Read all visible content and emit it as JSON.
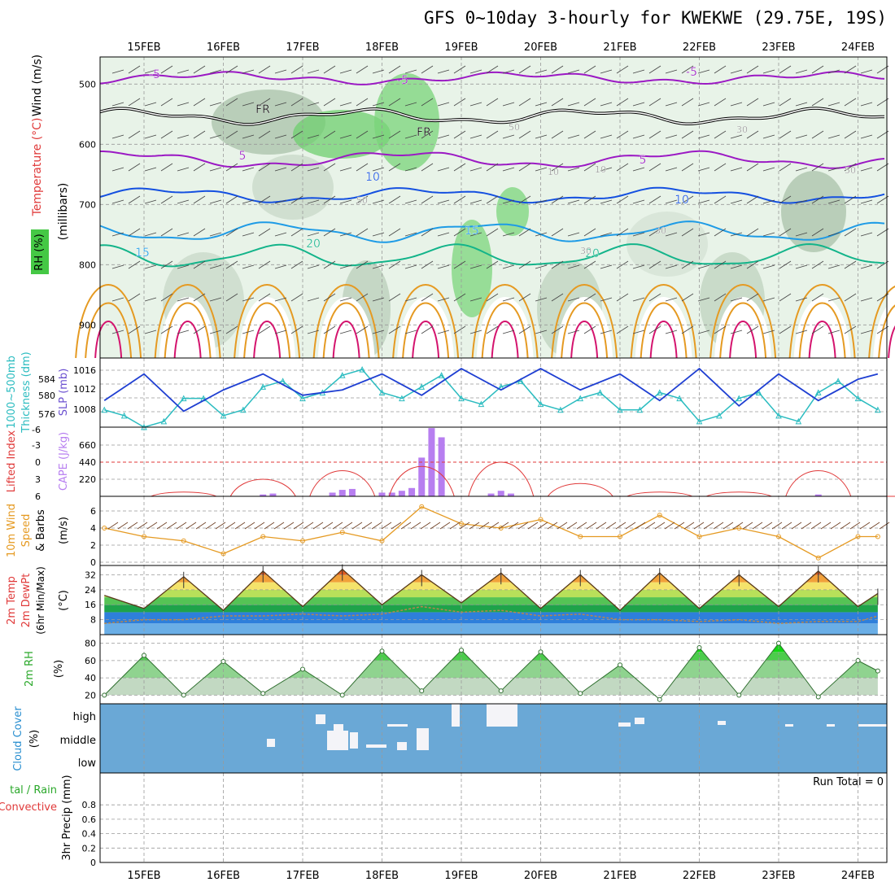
{
  "title": "GFS 0~10day 3-hourly for KWEKWE (29.75E, 19S)",
  "dates": [
    "15FEB",
    "16FEB",
    "17FEB",
    "18FEB",
    "19FEB",
    "20FEB",
    "21FEB",
    "22FEB",
    "23FEB",
    "24FEB"
  ],
  "colors": {
    "temp_cold": "#9b19c4",
    "temp_cool": "#1450e0",
    "temp_mild": "#1e9be6",
    "temp_warm": "#13b48a",
    "temp_hot": "#e59a22",
    "temp_vhot": "#d4146e",
    "freezing": "#000000",
    "thickness": "#2bbcc0",
    "slp": "#1f3fd2",
    "lifted": "#e03a3a",
    "cape": "#b77ef0",
    "wind10": "#e59a22",
    "rh_high": "#45c845",
    "cloud_bg": "#6aa8d6",
    "cloud_block": "#f4f4f8"
  },
  "panels": {
    "upper": {
      "ylabel_wind": "Wind (m/s)",
      "ylabel_temp": "Temperature (°C)",
      "ylabel_rh": "RH (%)",
      "ylabel_p": "(millibars)",
      "yticks": [
        "500",
        "600",
        "700",
        "800",
        "900"
      ],
      "contour_labels": [
        "-5",
        "-5",
        "-5",
        "5",
        "5",
        "10",
        "10",
        "15",
        "15",
        "20",
        "20",
        "FR",
        "FR",
        "50",
        "50",
        "50",
        "30",
        "30",
        "30",
        "10",
        "10"
      ]
    },
    "thick": {
      "ylabel_a": "1000~500mb",
      "ylabel_b": "Thickness (dm)",
      "ylabel_c": "SLP (mb)",
      "yticks_left": [
        "584",
        "580",
        "576"
      ],
      "yticks_right": [
        "1016",
        "1012",
        "1008"
      ]
    },
    "cape": {
      "ylabel_a": "Lifted Index",
      "ylabel_b": "CAPE (J/kg)",
      "yticks_left": [
        "-6",
        "-3",
        "0",
        "3",
        "6"
      ],
      "yticks_right": [
        "660",
        "440",
        "220"
      ]
    },
    "wind10": {
      "ylabel_a": "10m Wind",
      "ylabel_b": "Speed",
      "ylabel_c": "& Barbs",
      "ylabel_d": "(m/s)",
      "yticks": [
        "6",
        "4",
        "2",
        "0"
      ]
    },
    "temp2m": {
      "ylabel_a": "2m Temp",
      "ylabel_b": "2m DewPt",
      "ylabel_c": "(6hr Min/Max)",
      "ylabel_d": "(°C)",
      "yticks": [
        "32",
        "24",
        "16",
        "8"
      ]
    },
    "rh2m": {
      "ylabel_a": "2m RH",
      "ylabel_b": "(%)",
      "yticks": [
        "80",
        "60",
        "40",
        "20"
      ]
    },
    "cloud": {
      "ylabel_a": "Cloud Cover",
      "ylabel_b": "(%)",
      "levels": [
        "high",
        "middle",
        "low"
      ]
    },
    "precip": {
      "ylabel_a": "tal / Rain",
      "ylabel_b": "Convective",
      "ylabel_c": "3hr Precip (mm)",
      "yticks": [
        "0.8",
        "0.6",
        "0.4",
        "0.2",
        "0"
      ],
      "run_total": "Run Total = 0"
    }
  },
  "chart_data": [
    {
      "type": "line",
      "name": "1000~500mb Thickness (dm)",
      "x": [
        "14FEB12",
        "14FEB18",
        "15FEB00",
        "15FEB06",
        "15FEB12",
        "15FEB18",
        "16FEB00",
        "16FEB06",
        "16FEB12",
        "16FEB18",
        "17FEB00",
        "17FEB06",
        "17FEB12",
        "17FEB18",
        "18FEB00",
        "18FEB06",
        "18FEB12",
        "18FEB18",
        "19FEB00",
        "19FEB06",
        "19FEB12",
        "19FEB18",
        "20FEB00",
        "20FEB06",
        "20FEB12",
        "20FEB18",
        "21FEB00",
        "21FEB06",
        "21FEB12",
        "21FEB18",
        "22FEB00",
        "22FEB06",
        "22FEB12",
        "22FEB18",
        "23FEB00",
        "23FEB06",
        "23FEB12",
        "23FEB18",
        "24FEB00",
        "24FEB06"
      ],
      "values": [
        578,
        577,
        575,
        576,
        580,
        580,
        577,
        578,
        582,
        583,
        580,
        581,
        584,
        585,
        581,
        580,
        582,
        584,
        580,
        579,
        582,
        583,
        579,
        578,
        580,
        581,
        578,
        578,
        581,
        580,
        576,
        577,
        580,
        581,
        577,
        576,
        581,
        583,
        580,
        578
      ],
      "ylim": [
        575,
        587
      ]
    },
    {
      "type": "line",
      "name": "SLP (mb)",
      "x": [
        "14FEB12",
        "15FEB00",
        "15FEB12",
        "16FEB00",
        "16FEB12",
        "17FEB00",
        "17FEB12",
        "18FEB00",
        "18FEB12",
        "19FEB00",
        "19FEB12",
        "20FEB00",
        "20FEB12",
        "21FEB00",
        "21FEB12",
        "22FEB00",
        "22FEB12",
        "23FEB00",
        "23FEB12",
        "24FEB00",
        "24FEB06"
      ],
      "values": [
        1010,
        1015,
        1008,
        1012,
        1015,
        1011,
        1012,
        1015,
        1011,
        1016,
        1012,
        1016,
        1012,
        1015,
        1010,
        1016,
        1009,
        1015,
        1010,
        1014,
        1015
      ],
      "ylim": [
        1005,
        1018
      ]
    },
    {
      "type": "bar",
      "name": "CAPE (J/kg)",
      "x": [
        "16FEB12",
        "16FEB15",
        "17FEB09",
        "17FEB12",
        "17FEB15",
        "18FEB00",
        "18FEB03",
        "18FEB06",
        "18FEB09",
        "18FEB12",
        "18FEB15",
        "18FEB18",
        "19FEB09",
        "19FEB12",
        "19FEB15",
        "23FEB12"
      ],
      "values": [
        20,
        30,
        40,
        70,
        80,
        40,
        40,
        60,
        90,
        420,
        740,
        640,
        30,
        60,
        30,
        20
      ],
      "ylim": [
        0,
        750
      ]
    },
    {
      "type": "line",
      "name": "Lifted Index",
      "x": [
        "15FEB12",
        "16FEB12",
        "17FEB12",
        "18FEB12",
        "19FEB12",
        "20FEB12",
        "21FEB12",
        "22FEB12",
        "23FEB12",
        "24FEB12"
      ],
      "values": [
        5,
        2,
        0,
        -1,
        -2,
        3,
        5,
        5,
        0,
        6
      ],
      "ylim": [
        6,
        -6
      ]
    },
    {
      "type": "line",
      "name": "10m Wind Speed (m/s)",
      "x": [
        "14FEB12",
        "15FEB00",
        "15FEB12",
        "16FEB00",
        "16FEB12",
        "17FEB00",
        "17FEB12",
        "18FEB00",
        "18FEB12",
        "19FEB00",
        "19FEB12",
        "20FEB00",
        "20FEB12",
        "21FEB00",
        "21FEB12",
        "22FEB00",
        "22FEB12",
        "23FEB00",
        "23FEB12",
        "24FEB00",
        "24FEB06"
      ],
      "values": [
        4,
        3,
        2.5,
        1,
        3,
        2.5,
        3.5,
        2.5,
        6.5,
        4.5,
        4,
        5,
        3,
        3,
        5.5,
        3,
        4,
        3,
        0.5,
        3,
        3
      ],
      "ylim": [
        0,
        7
      ]
    },
    {
      "type": "area",
      "name": "2m Temp (°C)",
      "x": [
        "14FEB12",
        "15FEB00",
        "15FEB12",
        "16FEB00",
        "16FEB12",
        "17FEB00",
        "17FEB12",
        "18FEB00",
        "18FEB12",
        "19FEB00",
        "19FEB12",
        "20FEB00",
        "20FEB12",
        "21FEB00",
        "21FEB12",
        "22FEB00",
        "22FEB12",
        "23FEB00",
        "23FEB12",
        "24FEB00",
        "24FEB06"
      ],
      "values": [
        21,
        14,
        31,
        13,
        34,
        15,
        35,
        16,
        32,
        17,
        33,
        14,
        32,
        13,
        33,
        14,
        32,
        15,
        34,
        15,
        22
      ],
      "ylim": [
        0,
        37
      ]
    },
    {
      "type": "line",
      "name": "2m DewPt (°C)",
      "x": [
        "14FEB12",
        "15FEB00",
        "15FEB12",
        "16FEB00",
        "16FEB12",
        "17FEB00",
        "17FEB12",
        "18FEB00",
        "18FEB12",
        "19FEB00",
        "19FEB12",
        "20FEB00",
        "20FEB12",
        "21FEB00",
        "21FEB12",
        "22FEB00",
        "22FEB12",
        "23FEB00",
        "23FEB12",
        "24FEB00",
        "24FEB06"
      ],
      "values": [
        6,
        8,
        8,
        10,
        10,
        11,
        10,
        11,
        15,
        12,
        13,
        10,
        11,
        8,
        8,
        7,
        8,
        6,
        7,
        7,
        10
      ],
      "ylim": [
        0,
        37
      ]
    },
    {
      "type": "area",
      "name": "2m RH (%)",
      "x": [
        "14FEB12",
        "15FEB00",
        "15FEB12",
        "16FEB00",
        "16FEB12",
        "17FEB00",
        "17FEB12",
        "18FEB00",
        "18FEB12",
        "19FEB00",
        "19FEB12",
        "20FEB00",
        "20FEB12",
        "21FEB00",
        "21FEB12",
        "22FEB00",
        "22FEB12",
        "23FEB00",
        "23FEB12",
        "24FEB00",
        "24FEB06"
      ],
      "values": [
        20,
        66,
        20,
        59,
        22,
        50,
        20,
        71,
        25,
        72,
        25,
        70,
        22,
        55,
        15,
        75,
        20,
        80,
        18,
        60,
        48
      ],
      "ylim": [
        10,
        90
      ]
    }
  ]
}
